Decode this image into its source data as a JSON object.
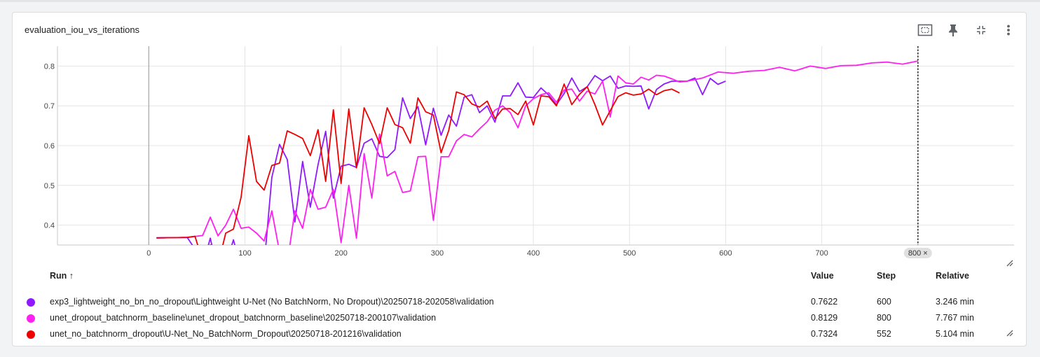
{
  "card": {
    "title": "evaluation_iou_vs_iterations"
  },
  "toolbar": [
    "fit-domain-icon",
    "pin-icon",
    "collapse-icon",
    "more-vert-icon"
  ],
  "hover_step_label": "800 ×",
  "legend": {
    "headers": {
      "run": "Run ↑",
      "value": "Value",
      "step": "Step",
      "relative": "Relative"
    },
    "rows": [
      {
        "color": "#9019ff",
        "name": "exp3_lightweight_no_bn_no_dropout\\Lightweight U-Net (No BatchNorm, No Dropout)\\20250718-202058\\validation",
        "value": "0.7622",
        "step": "600",
        "relative": "3.246 min"
      },
      {
        "color": "#ff1ff0",
        "name": "unet_dropout_batchnorm_baseline\\unet_dropout_batchnorm_baseline\\20250718-200107\\validation",
        "value": "0.8129",
        "step": "800",
        "relative": "7.767 min"
      },
      {
        "color": "#ee0000",
        "name": "unet_no_batchnorm_dropout\\U-Net_No_BatchNorm_Dropout\\20250718-201216\\validation",
        "value": "0.7324",
        "step": "552",
        "relative": "5.104 min"
      }
    ]
  },
  "chart_data": {
    "type": "line",
    "title": "evaluation_iou_vs_iterations",
    "xlim": [
      -95,
      900
    ],
    "ylim": [
      0.35,
      0.85
    ],
    "x_ticks": [
      0,
      100,
      200,
      300,
      400,
      500,
      600,
      700,
      800
    ],
    "y_ticks": [
      0.4,
      0.5,
      0.6,
      0.7,
      0.8
    ],
    "grid": true,
    "hover_step": 800,
    "series": [
      {
        "name": "exp3_lightweight_no_bn_no_dropout\\Lightweight U-Net (No BatchNorm, No Dropout)\\20250718-202058\\validation",
        "color": "#9019ff",
        "points": [
          [
            8,
            0.368
          ],
          [
            40,
            0.369
          ],
          [
            48,
            0.34
          ],
          [
            56,
            0.3
          ],
          [
            64,
            0.367
          ],
          [
            72,
            0.28
          ],
          [
            80,
            0.3
          ],
          [
            88,
            0.363
          ],
          [
            96,
            0.29
          ],
          [
            104,
            0.3
          ],
          [
            112,
            0.343
          ],
          [
            120,
            0.3
          ],
          [
            128,
            0.52
          ],
          [
            136,
            0.603
          ],
          [
            144,
            0.565
          ],
          [
            152,
            0.408
          ],
          [
            160,
            0.56
          ],
          [
            168,
            0.445
          ],
          [
            176,
            0.552
          ],
          [
            184,
            0.636
          ],
          [
            192,
            0.468
          ],
          [
            200,
            0.548
          ],
          [
            208,
            0.553
          ],
          [
            216,
            0.545
          ],
          [
            224,
            0.606
          ],
          [
            232,
            0.617
          ],
          [
            240,
            0.573
          ],
          [
            248,
            0.57
          ],
          [
            256,
            0.59
          ],
          [
            264,
            0.72
          ],
          [
            272,
            0.668
          ],
          [
            280,
            0.698
          ],
          [
            288,
            0.602
          ],
          [
            296,
            0.694
          ],
          [
            304,
            0.626
          ],
          [
            312,
            0.677
          ],
          [
            320,
            0.649
          ],
          [
            328,
            0.722
          ],
          [
            336,
            0.728
          ],
          [
            344,
            0.683
          ],
          [
            352,
            0.7
          ],
          [
            360,
            0.659
          ],
          [
            368,
            0.725
          ],
          [
            376,
            0.725
          ],
          [
            384,
            0.758
          ],
          [
            392,
            0.722
          ],
          [
            400,
            0.721
          ],
          [
            408,
            0.745
          ],
          [
            416,
            0.727
          ],
          [
            424,
            0.703
          ],
          [
            432,
            0.731
          ],
          [
            440,
            0.77
          ],
          [
            448,
            0.736
          ],
          [
            456,
            0.748
          ],
          [
            464,
            0.776
          ],
          [
            472,
            0.763
          ],
          [
            480,
            0.775
          ],
          [
            488,
            0.744
          ],
          [
            496,
            0.75
          ],
          [
            504,
            0.749
          ],
          [
            512,
            0.75
          ],
          [
            520,
            0.692
          ],
          [
            528,
            0.741
          ],
          [
            536,
            0.755
          ],
          [
            544,
            0.762
          ],
          [
            552,
            0.762
          ],
          [
            560,
            0.762
          ],
          [
            568,
            0.77
          ],
          [
            576,
            0.728
          ],
          [
            584,
            0.769
          ],
          [
            592,
            0.754
          ],
          [
            600,
            0.7622
          ]
        ]
      },
      {
        "name": "unet_dropout_batchnorm_baseline\\unet_dropout_batchnorm_baseline\\20250718-200107\\validation",
        "color": "#ff1ff0",
        "points": [
          [
            8,
            0.368
          ],
          [
            40,
            0.369
          ],
          [
            56,
            0.374
          ],
          [
            64,
            0.42
          ],
          [
            72,
            0.373
          ],
          [
            80,
            0.4
          ],
          [
            88,
            0.44
          ],
          [
            96,
            0.392
          ],
          [
            104,
            0.395
          ],
          [
            112,
            0.38
          ],
          [
            120,
            0.36
          ],
          [
            128,
            0.436
          ],
          [
            136,
            0.332
          ],
          [
            144,
            0.305
          ],
          [
            152,
            0.436
          ],
          [
            160,
            0.392
          ],
          [
            168,
            0.49
          ],
          [
            176,
            0.44
          ],
          [
            184,
            0.445
          ],
          [
            192,
            0.49
          ],
          [
            200,
            0.356
          ],
          [
            208,
            0.5
          ],
          [
            216,
            0.367
          ],
          [
            224,
            0.58
          ],
          [
            232,
            0.468
          ],
          [
            240,
            0.629
          ],
          [
            248,
            0.524
          ],
          [
            256,
            0.535
          ],
          [
            264,
            0.482
          ],
          [
            272,
            0.486
          ],
          [
            280,
            0.572
          ],
          [
            288,
            0.573
          ],
          [
            296,
            0.412
          ],
          [
            304,
            0.572
          ],
          [
            312,
            0.572
          ],
          [
            320,
            0.612
          ],
          [
            328,
            0.628
          ],
          [
            336,
            0.622
          ],
          [
            344,
            0.642
          ],
          [
            352,
            0.66
          ],
          [
            360,
            0.689
          ],
          [
            368,
            0.7
          ],
          [
            376,
            0.683
          ],
          [
            384,
            0.645
          ],
          [
            392,
            0.7
          ],
          [
            400,
            0.718
          ],
          [
            408,
            0.728
          ],
          [
            416,
            0.733
          ],
          [
            424,
            0.709
          ],
          [
            432,
            0.74
          ],
          [
            440,
            0.742
          ],
          [
            448,
            0.712
          ],
          [
            456,
            0.737
          ],
          [
            464,
            0.73
          ],
          [
            472,
            0.762
          ],
          [
            480,
            0.672
          ],
          [
            488,
            0.775
          ],
          [
            496,
            0.758
          ],
          [
            504,
            0.755
          ],
          [
            512,
            0.772
          ],
          [
            520,
            0.765
          ],
          [
            528,
            0.777
          ],
          [
            536,
            0.775
          ],
          [
            544,
            0.768
          ],
          [
            552,
            0.76
          ],
          [
            560,
            0.762
          ],
          [
            576,
            0.77
          ],
          [
            592,
            0.785
          ],
          [
            608,
            0.782
          ],
          [
            624,
            0.787
          ],
          [
            640,
            0.789
          ],
          [
            656,
            0.797
          ],
          [
            672,
            0.788
          ],
          [
            688,
            0.8
          ],
          [
            704,
            0.794
          ],
          [
            720,
            0.801
          ],
          [
            736,
            0.802
          ],
          [
            752,
            0.808
          ],
          [
            768,
            0.81
          ],
          [
            784,
            0.805
          ],
          [
            800,
            0.8129
          ]
        ]
      },
      {
        "name": "unet_no_batchnorm_dropout\\U-Net_No_BatchNorm_Dropout\\20250718-201216\\validation",
        "color": "#ee0000",
        "points": [
          [
            8,
            0.368
          ],
          [
            40,
            0.369
          ],
          [
            48,
            0.372
          ],
          [
            56,
            0.31
          ],
          [
            64,
            0.35
          ],
          [
            72,
            0.3
          ],
          [
            80,
            0.38
          ],
          [
            88,
            0.39
          ],
          [
            96,
            0.47
          ],
          [
            104,
            0.625
          ],
          [
            112,
            0.51
          ],
          [
            120,
            0.488
          ],
          [
            128,
            0.55
          ],
          [
            136,
            0.556
          ],
          [
            144,
            0.637
          ],
          [
            152,
            0.628
          ],
          [
            160,
            0.618
          ],
          [
            168,
            0.575
          ],
          [
            176,
            0.64
          ],
          [
            184,
            0.51
          ],
          [
            192,
            0.69
          ],
          [
            200,
            0.505
          ],
          [
            208,
            0.692
          ],
          [
            216,
            0.544
          ],
          [
            224,
            0.695
          ],
          [
            232,
            0.653
          ],
          [
            240,
            0.605
          ],
          [
            248,
            0.695
          ],
          [
            256,
            0.653
          ],
          [
            264,
            0.645
          ],
          [
            272,
            0.606
          ],
          [
            280,
            0.72
          ],
          [
            288,
            0.685
          ],
          [
            296,
            0.677
          ],
          [
            304,
            0.582
          ],
          [
            312,
            0.638
          ],
          [
            320,
            0.735
          ],
          [
            328,
            0.728
          ],
          [
            336,
            0.705
          ],
          [
            344,
            0.697
          ],
          [
            352,
            0.712
          ],
          [
            360,
            0.668
          ],
          [
            368,
            0.692
          ],
          [
            376,
            0.693
          ],
          [
            384,
            0.678
          ],
          [
            392,
            0.712
          ],
          [
            400,
            0.652
          ],
          [
            408,
            0.725
          ],
          [
            416,
            0.723
          ],
          [
            424,
            0.7
          ],
          [
            432,
            0.755
          ],
          [
            440,
            0.703
          ],
          [
            448,
            0.729
          ],
          [
            456,
            0.748
          ],
          [
            464,
            0.703
          ],
          [
            472,
            0.652
          ],
          [
            480,
            0.688
          ],
          [
            488,
            0.723
          ],
          [
            496,
            0.733
          ],
          [
            504,
            0.727
          ],
          [
            512,
            0.73
          ],
          [
            520,
            0.742
          ],
          [
            528,
            0.728
          ],
          [
            536,
            0.738
          ],
          [
            544,
            0.742
          ],
          [
            552,
            0.7324
          ]
        ]
      }
    ]
  }
}
